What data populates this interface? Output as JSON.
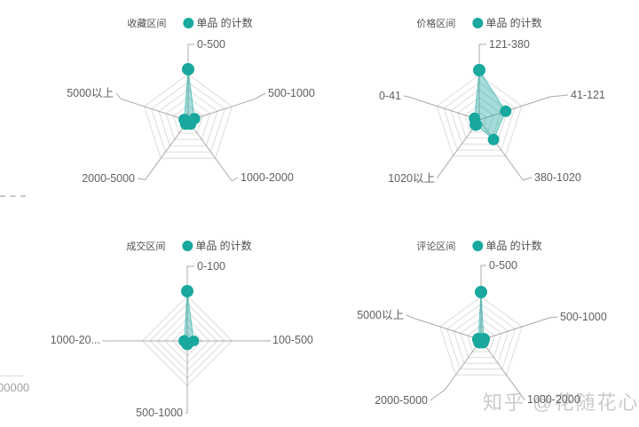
{
  "page": {
    "background": "#ffffff"
  },
  "colors": {
    "teal": "#18a89e",
    "fill": "rgba(24,168,158,0.40)",
    "fill_stroke": "rgba(24,168,158,0.55)",
    "ring": "#dcdcdc",
    "spoke": "#a8a8a8",
    "label": "#5f5f5f",
    "title": "#4f4f4f",
    "watermark": "#cbcbcb"
  },
  "watermark": {
    "text": "知乎 @花随花心"
  },
  "left_edge": {
    "partial_number": "00000"
  },
  "chart_data": [
    {
      "type": "radar",
      "title": "收藏区间",
      "legend": "单品 的计数",
      "legend_position": "top",
      "axes": 5,
      "rings": 6,
      "grid": true,
      "categories": [
        "0-500",
        "500-1000",
        "1000-2000",
        "2000-5000",
        "5000以上"
      ],
      "values_fraction_of_axis_max": [
        1.0,
        0.13,
        0.08,
        0.08,
        0.08
      ]
    },
    {
      "type": "radar",
      "title": "价格区间",
      "legend": "单品 的计数",
      "legend_position": "top",
      "axes": 5,
      "rings": 6,
      "grid": true,
      "categories": [
        "121-380",
        "41-121",
        "380-1020",
        "1020以上",
        "0-41"
      ],
      "values_fraction_of_axis_max": [
        1.0,
        0.56,
        0.49,
        0.12,
        0.1
      ]
    },
    {
      "type": "radar",
      "title": "成交区间",
      "legend": "单品 的计数",
      "legend_position": "top",
      "axes": 4,
      "rings": 6,
      "grid": true,
      "categories": [
        "0-100",
        "100-500",
        "500-1000",
        "1000-20..."
      ],
      "values_fraction_of_axis_max": [
        1.0,
        0.13,
        0.06,
        0.06
      ]
    },
    {
      "type": "radar",
      "title": "评论区间",
      "legend": "单品 的计数",
      "legend_position": "top",
      "axes": 5,
      "rings": 6,
      "grid": true,
      "categories": [
        "0-500",
        "500-1000",
        "1000-2000",
        "2000-5000",
        "5000以上"
      ],
      "values_fraction_of_axis_max": [
        1.0,
        0.06,
        0.06,
        0.06,
        0.06
      ]
    }
  ]
}
